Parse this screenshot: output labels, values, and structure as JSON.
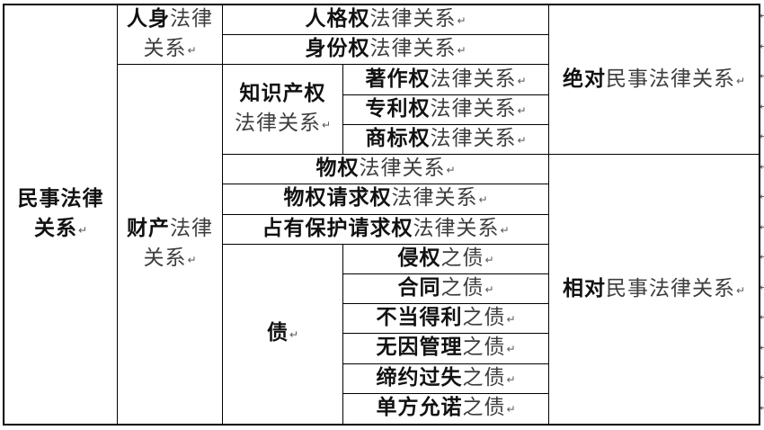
{
  "page": {
    "background": "#ffffff"
  },
  "table": {
    "border_color": "#000000",
    "bold_color": "#111111",
    "regular_color": "#3d3d3d",
    "mark_color": "#555555",
    "return_mark": "↵",
    "row_end_mark": "↵",
    "row_count": 14,
    "cells": [
      {
        "id": "civil-legal-relations",
        "text": "民事法律关系",
        "segments": [
          [
            "b",
            "民事法律"
          ],
          [
            "nl"
          ],
          [
            "b",
            "关系"
          ],
          [
            "mk"
          ]
        ]
      },
      {
        "id": "personal-legal-relations",
        "text": "人身法律关系",
        "segments": [
          [
            "b",
            "人身"
          ],
          [
            "r",
            "法律"
          ],
          [
            "nl"
          ],
          [
            "r",
            "关系"
          ],
          [
            "mk"
          ]
        ]
      },
      {
        "id": "property-legal-relations",
        "text": "财产法律关系",
        "segments": [
          [
            "b",
            "财产"
          ],
          [
            "r",
            "法律"
          ],
          [
            "nl"
          ],
          [
            "r",
            "关系"
          ],
          [
            "mk"
          ]
        ]
      },
      {
        "id": "personality-rights",
        "text": "人格权法律关系",
        "segments": [
          [
            "b",
            "人格权"
          ],
          [
            "r",
            "法律关系"
          ],
          [
            "mk"
          ]
        ]
      },
      {
        "id": "identity-rights",
        "text": "身份权法律关系",
        "segments": [
          [
            "b",
            "身份权"
          ],
          [
            "r",
            "法律关系"
          ],
          [
            "mk"
          ]
        ]
      },
      {
        "id": "intellectual-property",
        "text": "知识产权法律关系",
        "segments": [
          [
            "b",
            "知识产权"
          ],
          [
            "nl"
          ],
          [
            "r",
            "法律关系"
          ],
          [
            "mk"
          ]
        ]
      },
      {
        "id": "copyright",
        "text": "著作权法律关系",
        "segments": [
          [
            "b",
            "著作权"
          ],
          [
            "r",
            "法律关系"
          ],
          [
            "mk"
          ]
        ]
      },
      {
        "id": "patent",
        "text": "专利权法律关系",
        "segments": [
          [
            "b",
            "专利权"
          ],
          [
            "r",
            "法律关系"
          ],
          [
            "mk"
          ]
        ]
      },
      {
        "id": "trademark",
        "text": "商标权法律关系",
        "segments": [
          [
            "b",
            "商标权"
          ],
          [
            "r",
            "法律关系"
          ],
          [
            "mk"
          ]
        ]
      },
      {
        "id": "property-rights",
        "text": "物权法律关系",
        "segments": [
          [
            "b",
            "物权"
          ],
          [
            "r",
            "法律关系"
          ],
          [
            "mk"
          ]
        ]
      },
      {
        "id": "property-claim-rights",
        "text": "物权请求权法律关系",
        "segments": [
          [
            "b",
            "物权请求权"
          ],
          [
            "r",
            "法律关系"
          ],
          [
            "mk"
          ]
        ]
      },
      {
        "id": "possession-protection-claim",
        "text": "占有保护请求权法律关系",
        "segments": [
          [
            "b",
            "占有保护请求权"
          ],
          [
            "r",
            "法律关系"
          ],
          [
            "mk"
          ]
        ]
      },
      {
        "id": "obligations",
        "text": "债",
        "segments": [
          [
            "b",
            "债"
          ],
          [
            "mk"
          ]
        ]
      },
      {
        "id": "tort-debt",
        "text": "侵权之债",
        "segments": [
          [
            "b",
            "侵权"
          ],
          [
            "r",
            "之债"
          ],
          [
            "mk"
          ]
        ]
      },
      {
        "id": "contract-debt",
        "text": "合同之债",
        "segments": [
          [
            "b",
            "合同"
          ],
          [
            "r",
            "之债"
          ],
          [
            "mk"
          ]
        ]
      },
      {
        "id": "unjust-enrichment-debt",
        "text": "不当得利之债",
        "segments": [
          [
            "b",
            "不当得利"
          ],
          [
            "r",
            "之债"
          ],
          [
            "mk"
          ]
        ]
      },
      {
        "id": "negotiorum-gestio-debt",
        "text": "无因管理之债",
        "segments": [
          [
            "b",
            "无因管理"
          ],
          [
            "r",
            "之债"
          ],
          [
            "mk"
          ]
        ]
      },
      {
        "id": "culpa-in-contrahendo-debt",
        "text": "缔约过失之债",
        "segments": [
          [
            "b",
            "缔约过失"
          ],
          [
            "r",
            "之债"
          ],
          [
            "mk"
          ]
        ]
      },
      {
        "id": "unilateral-promise-debt",
        "text": "单方允诺之债",
        "segments": [
          [
            "b",
            "单方允诺"
          ],
          [
            "r",
            "之债"
          ],
          [
            "mk"
          ]
        ]
      },
      {
        "id": "absolute-civil-legal-relations",
        "text": "绝对民事法律关系",
        "segments": [
          [
            "b",
            "绝对"
          ],
          [
            "r",
            "民事法律关系"
          ],
          [
            "mk"
          ]
        ]
      },
      {
        "id": "relative-civil-legal-relations",
        "text": "相对民事法律关系",
        "segments": [
          [
            "b",
            "相对"
          ],
          [
            "r",
            "民事法律关系"
          ],
          [
            "mk"
          ]
        ]
      }
    ]
  }
}
